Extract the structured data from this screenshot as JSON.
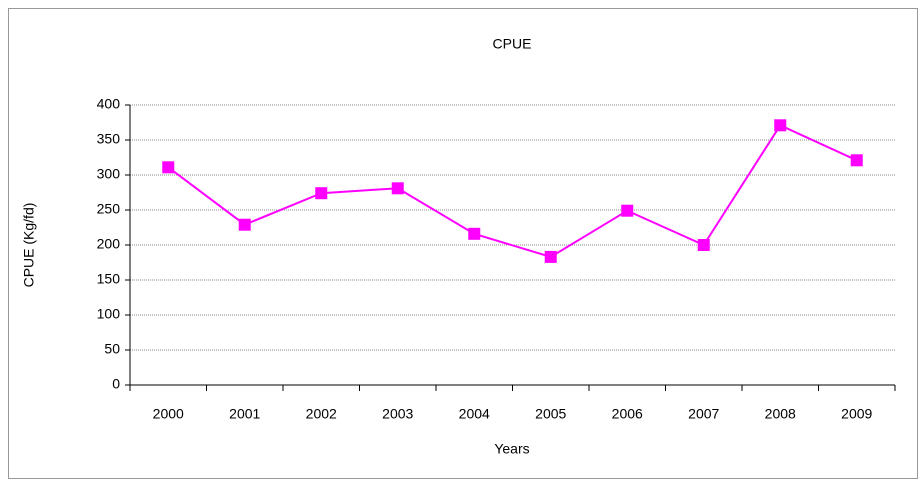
{
  "chart_data": {
    "type": "line",
    "title": "CPUE",
    "xlabel": "Years",
    "ylabel": "CPUE (Kg/fd)",
    "categories": [
      "2000",
      "2001",
      "2002",
      "2003",
      "2004",
      "2005",
      "2006",
      "2007",
      "2008",
      "2009"
    ],
    "series": [
      {
        "name": "CPUE",
        "color": "#ff00ff",
        "values": [
          311,
          229,
          274,
          281,
          216,
          183,
          249,
          200,
          371,
          321
        ]
      }
    ],
    "ylim": [
      0,
      400
    ],
    "yticks": [
      0,
      50,
      100,
      150,
      200,
      250,
      300,
      350,
      400
    ],
    "grid": true
  }
}
